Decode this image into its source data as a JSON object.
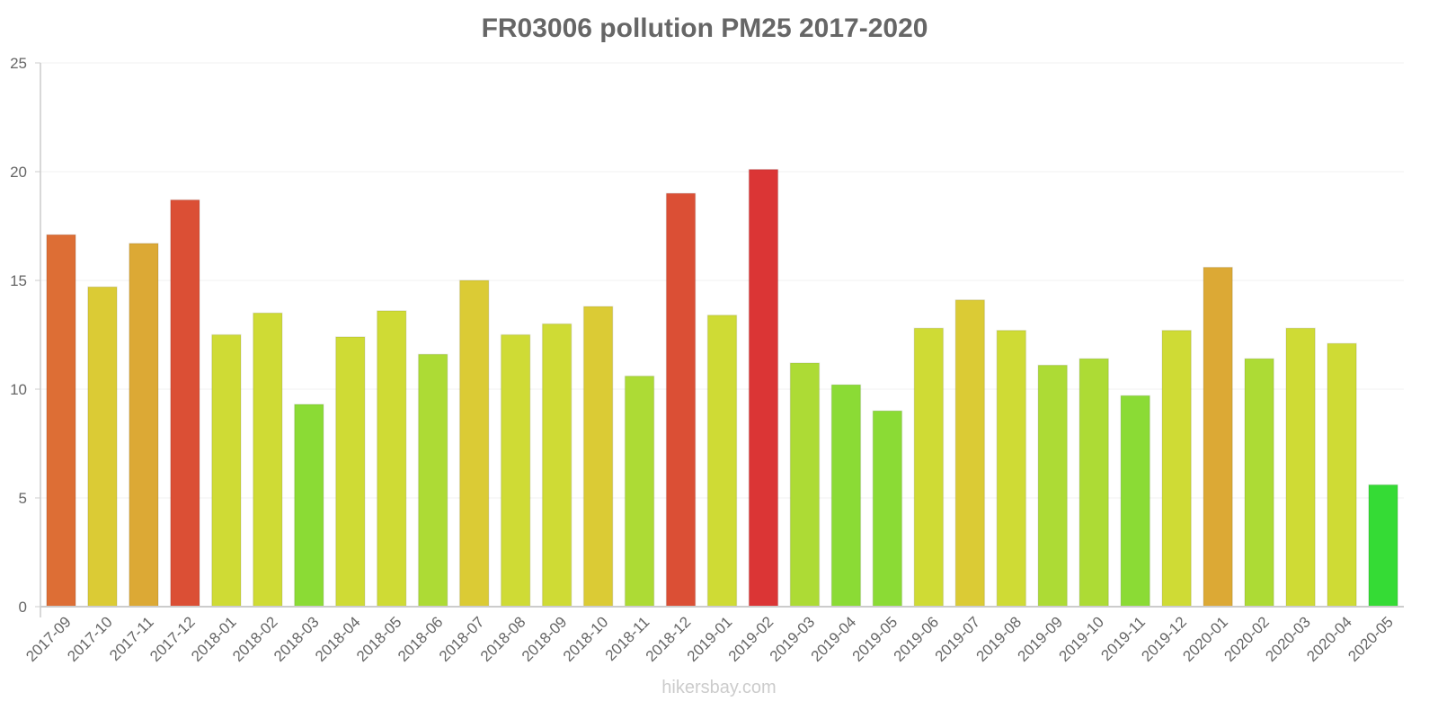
{
  "chart_data": {
    "type": "bar",
    "title": "FR03006 pollution PM25 2017-2020",
    "xlabel": "",
    "ylabel": "",
    "ylim": [
      0,
      25
    ],
    "yticks": [
      0,
      5,
      10,
      15,
      20,
      25
    ],
    "grid": true,
    "legend": null,
    "categories": [
      "2017-09",
      "2017-10",
      "2017-11",
      "2017-12",
      "2018-01",
      "2018-02",
      "2018-03",
      "2018-04",
      "2018-05",
      "2018-06",
      "2018-07",
      "2018-08",
      "2018-09",
      "2018-10",
      "2018-11",
      "2018-12",
      "2019-01",
      "2019-02",
      "2019-03",
      "2019-04",
      "2019-05",
      "2019-06",
      "2019-07",
      "2019-08",
      "2019-09",
      "2019-10",
      "2019-11",
      "2019-12",
      "2020-01",
      "2020-02",
      "2020-03",
      "2020-04",
      "2020-05"
    ],
    "values": [
      17.1,
      14.7,
      16.7,
      18.7,
      12.5,
      13.5,
      9.3,
      12.4,
      13.6,
      11.6,
      15.0,
      12.5,
      13.0,
      13.8,
      10.6,
      19.0,
      13.4,
      20.1,
      11.2,
      10.2,
      9.0,
      12.8,
      14.1,
      12.7,
      11.1,
      11.4,
      9.7,
      12.7,
      15.6,
      11.4,
      12.8,
      12.1,
      5.6
    ],
    "colors": [
      "#dd6e35",
      "#dbcb35",
      "#dca935",
      "#db4f35",
      "#cfdb35",
      "#cfdb35",
      "#8bdb35",
      "#cfdb35",
      "#cfdb35",
      "#addb35",
      "#dbcb35",
      "#cfdb35",
      "#cfdb35",
      "#dbcb35",
      "#addb35",
      "#db4f35",
      "#cfdb35",
      "#db3535",
      "#addb35",
      "#8bdb35",
      "#8bdb35",
      "#cfdb35",
      "#dbcb35",
      "#cfdb35",
      "#addb35",
      "#addb35",
      "#8bdb35",
      "#cfdb35",
      "#dca935",
      "#addb35",
      "#cfdb35",
      "#cfdb35",
      "#35db35"
    ]
  },
  "watermark": "hikersbay.com"
}
